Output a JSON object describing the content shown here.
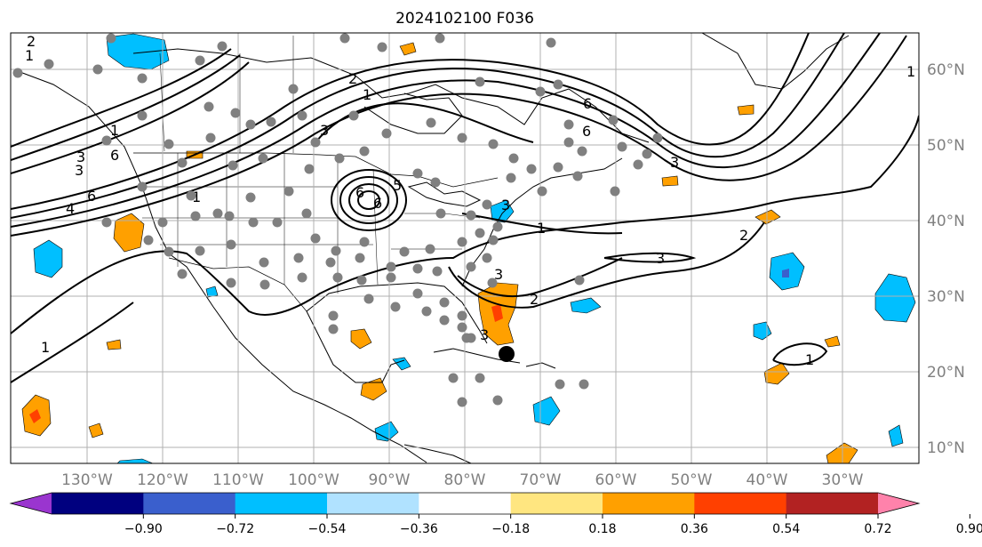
{
  "title": "2024102100 F036",
  "lon_labels": [
    "130°W",
    "120°W",
    "110°W",
    "100°W",
    "90°W",
    "80°W",
    "70°W",
    "60°W",
    "50°W",
    "40°W",
    "30°W"
  ],
  "lat_labels": [
    "60°N",
    "50°N",
    "40°N",
    "30°N",
    "20°N",
    "10°N"
  ],
  "colorbar": {
    "ticks": [
      "−0.90",
      "−0.72",
      "−0.54",
      "−0.36",
      "−0.18",
      "0.18",
      "0.36",
      "0.54",
      "0.72",
      "0.90"
    ],
    "colors": [
      "#9a35cf",
      "#00007f",
      "#3a5fcd",
      "#00bfff",
      "#b0e2ff",
      "#ffffff",
      "#ffe680",
      "#ffa000",
      "#ff4000",
      "#b22222",
      "#ff82ab"
    ]
  },
  "contour_labels": [
    "2",
    "1",
    "3",
    "6",
    "4",
    "6",
    "1",
    "3",
    "6",
    "6",
    "1",
    "2",
    "3",
    "1",
    "1",
    "6",
    "5",
    "3",
    "1",
    "3",
    "2",
    "1",
    "3",
    "2",
    "1",
    "6",
    "3",
    "3"
  ],
  "marker_label": "observation-station",
  "storm_marker": "hurricane-center"
}
